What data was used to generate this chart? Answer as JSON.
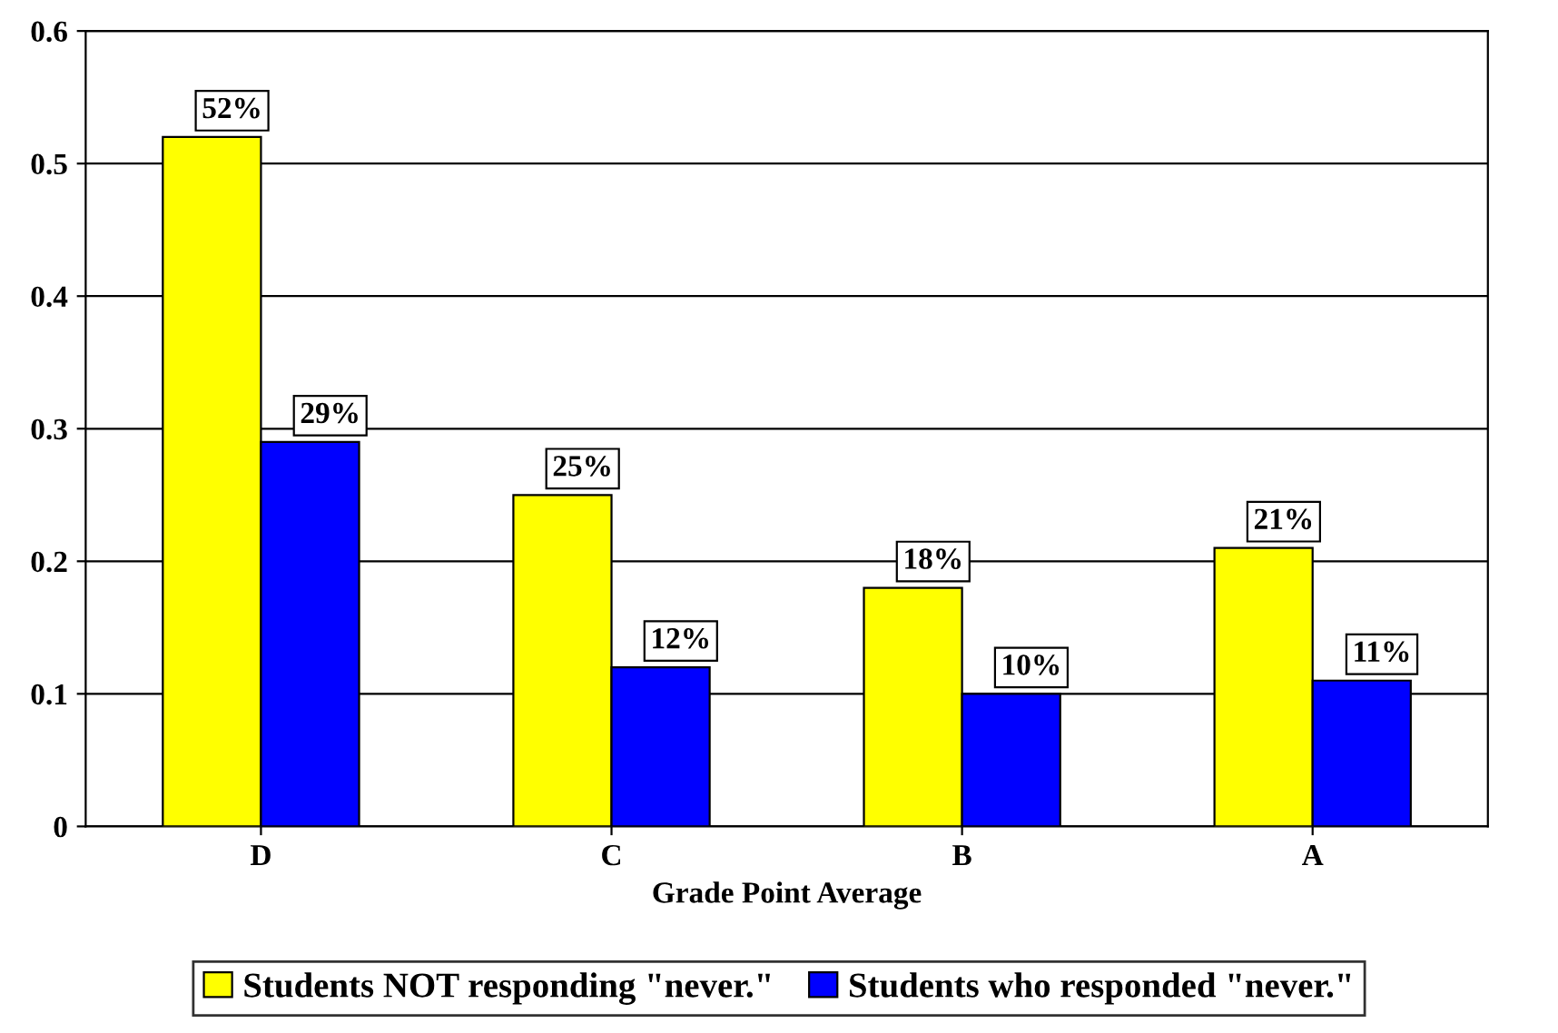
{
  "chart_data": {
    "type": "bar",
    "xlabel": "Grade Point Average",
    "categories": [
      "D",
      "C",
      "B",
      "A"
    ],
    "series": [
      {
        "name": "Students NOT responding \"never.\"",
        "color": "#ffff00",
        "values": [
          0.52,
          0.25,
          0.18,
          0.21
        ],
        "value_labels": [
          "52%",
          "25%",
          "18%",
          "21%"
        ]
      },
      {
        "name": "Students who responded \"never.\"",
        "color": "#0000ff",
        "values": [
          0.29,
          0.12,
          0.1,
          0.11
        ],
        "value_labels": [
          "29%",
          "12%",
          "10%",
          "11%"
        ]
      }
    ],
    "ylim": [
      0,
      0.6
    ],
    "yticks": [
      0,
      0.1,
      0.2,
      0.3,
      0.4,
      0.5,
      0.6
    ],
    "grid": "y",
    "legend": "bottom"
  }
}
